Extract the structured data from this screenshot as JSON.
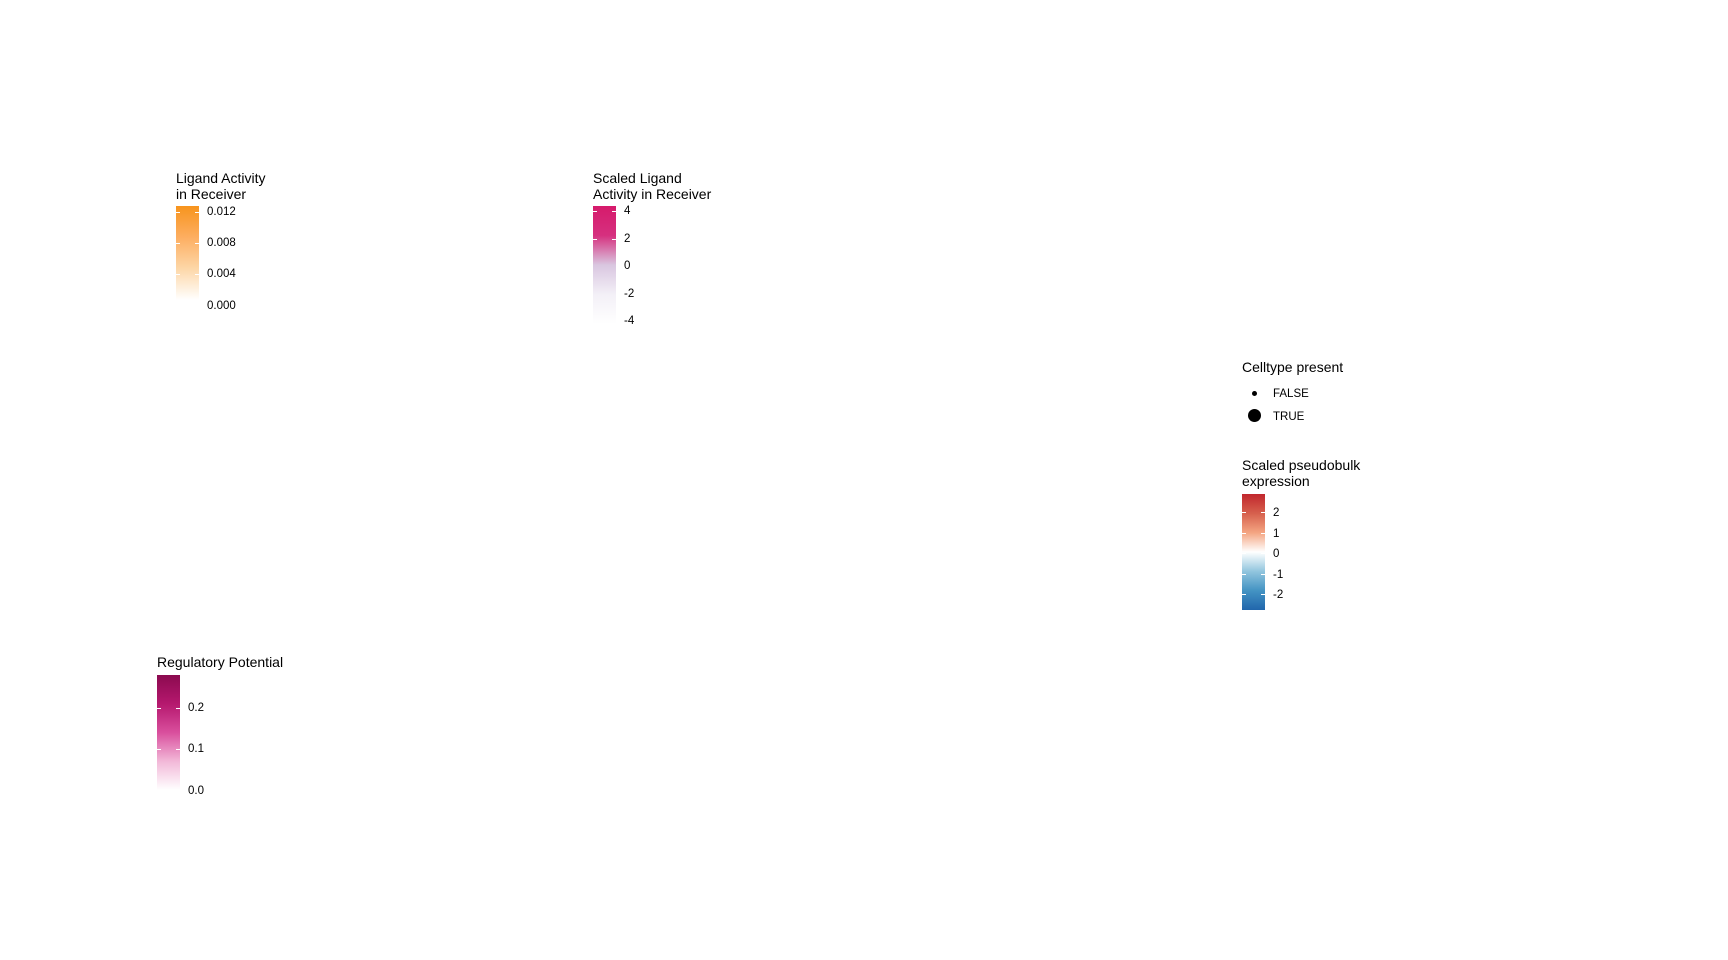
{
  "chart_data": [
    {
      "type": "legend-colorbar",
      "title": "Ligand Activity\nin Receiver",
      "colors": [
        "#ffffff",
        "#fdd7a8",
        "#fdae61",
        "#f7941d"
      ],
      "ticks": [
        "0.012",
        "0.008",
        "0.004",
        "0.000"
      ],
      "range": [
        0,
        0.0125
      ]
    },
    {
      "type": "legend-colorbar",
      "title": "Scaled Ligand\nActivity in Receiver",
      "colors": [
        "#ffffff",
        "#f3f0f7",
        "#d9c6e0",
        "#d6307f",
        "#d61a6b"
      ],
      "ticks": [
        "4",
        "2",
        "0",
        "-2",
        "-4"
      ],
      "range": [
        -4,
        4
      ]
    },
    {
      "type": "legend-size",
      "title": "Celltype present",
      "items": [
        {
          "label": "FALSE"
        },
        {
          "label": "TRUE"
        }
      ]
    },
    {
      "type": "legend-colorbar",
      "title": "Scaled pseudobulk\nexpression",
      "colors": [
        "#2166ac",
        "#4393c3",
        "#92c5de",
        "#ffffff",
        "#f4a582",
        "#d6604d",
        "#c1272d"
      ],
      "ticks": [
        "2",
        "1",
        "0",
        "-1",
        "-2"
      ],
      "range": [
        -2.8,
        2.8
      ]
    },
    {
      "type": "legend-colorbar",
      "title": "Regulatory Potential",
      "colors": [
        "#ffffff",
        "#f2b8d8",
        "#d94f9d",
        "#b5186e",
        "#8b0a4f"
      ],
      "ticks": [
        "0.2",
        "0.1",
        "0.0"
      ],
      "range": [
        0,
        0.27
      ]
    }
  ]
}
